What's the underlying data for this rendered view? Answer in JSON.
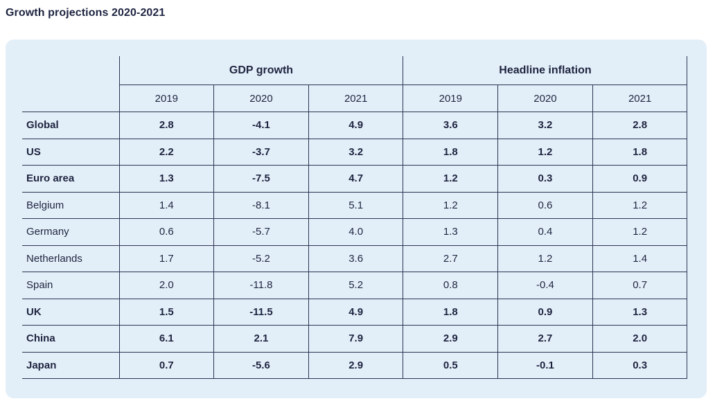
{
  "title": "Growth projections 2020-2021",
  "groups": {
    "gdp": "GDP growth",
    "inflation": "Headline inflation"
  },
  "years": [
    "2019",
    "2020",
    "2021",
    "2019",
    "2020",
    "2021"
  ],
  "rows": [
    {
      "label": "Global",
      "bold": true,
      "values": [
        "2.8",
        "-4.1",
        "4.9",
        "3.6",
        "3.2",
        "2.8"
      ]
    },
    {
      "label": "US",
      "bold": true,
      "values": [
        "2.2",
        "-3.7",
        "3.2",
        "1.8",
        "1.2",
        "1.8"
      ]
    },
    {
      "label": "Euro area",
      "bold": true,
      "values": [
        "1.3",
        "-7.5",
        "4.7",
        "1.2",
        "0.3",
        "0.9"
      ]
    },
    {
      "label": "Belgium",
      "bold": false,
      "values": [
        "1.4",
        "-8.1",
        "5.1",
        "1.2",
        "0.6",
        "1.2"
      ]
    },
    {
      "label": "Germany",
      "bold": false,
      "values": [
        "0.6",
        "-5.7",
        "4.0",
        "1.3",
        "0.4",
        "1.2"
      ]
    },
    {
      "label": "Netherlands",
      "bold": false,
      "values": [
        "1.7",
        "-5.2",
        "3.6",
        "2.7",
        "1.2",
        "1.4"
      ]
    },
    {
      "label": "Spain",
      "bold": false,
      "values": [
        "2.0",
        "-11.8",
        "5.2",
        "0.8",
        "-0.4",
        "0.7"
      ]
    },
    {
      "label": "UK",
      "bold": true,
      "values": [
        "1.5",
        "-11.5",
        "4.9",
        "1.8",
        "0.9",
        "1.3"
      ]
    },
    {
      "label": "China",
      "bold": true,
      "values": [
        "6.1",
        "2.1",
        "7.9",
        "2.9",
        "2.7",
        "2.0"
      ]
    },
    {
      "label": "Japan",
      "bold": true,
      "values": [
        "0.7",
        "-5.6",
        "2.9",
        "0.5",
        "-0.1",
        "0.3"
      ]
    }
  ]
}
